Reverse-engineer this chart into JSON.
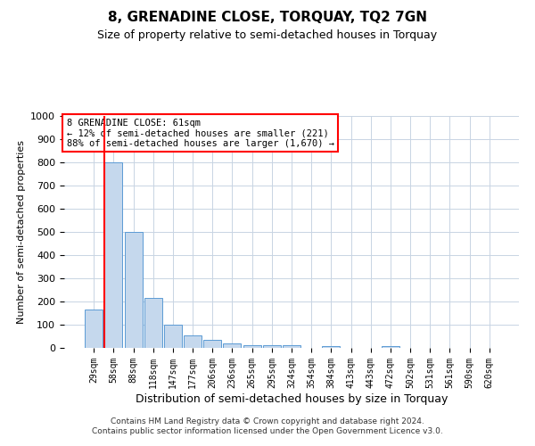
{
  "title": "8, GRENADINE CLOSE, TORQUAY, TQ2 7GN",
  "subtitle": "Size of property relative to semi-detached houses in Torquay",
  "xlabel": "Distribution of semi-detached houses by size in Torquay",
  "ylabel": "Number of semi-detached properties",
  "categories": [
    "29sqm",
    "58sqm",
    "88sqm",
    "118sqm",
    "147sqm",
    "177sqm",
    "206sqm",
    "236sqm",
    "265sqm",
    "295sqm",
    "324sqm",
    "354sqm",
    "384sqm",
    "413sqm",
    "443sqm",
    "472sqm",
    "502sqm",
    "531sqm",
    "561sqm",
    "590sqm",
    "620sqm"
  ],
  "values": [
    165,
    800,
    500,
    215,
    100,
    53,
    35,
    20,
    13,
    10,
    10,
    0,
    8,
    0,
    0,
    8,
    0,
    0,
    0,
    0,
    0
  ],
  "bar_color": "#c5d8ed",
  "bar_edge_color": "#5b9bd5",
  "red_line_x": 0.55,
  "ylim": [
    0,
    1000
  ],
  "yticks": [
    0,
    100,
    200,
    300,
    400,
    500,
    600,
    700,
    800,
    900,
    1000
  ],
  "annotation_title": "8 GRENADINE CLOSE: 61sqm",
  "annotation_line1": "← 12% of semi-detached houses are smaller (221)",
  "annotation_line2": "88% of semi-detached houses are larger (1,670) →",
  "annotation_box_color": "#ffffff",
  "annotation_box_edge_color": "#ff0000",
  "footer1": "Contains HM Land Registry data © Crown copyright and database right 2024.",
  "footer2": "Contains public sector information licensed under the Open Government Licence v3.0.",
  "bg_color": "#ffffff",
  "grid_color": "#c8d4e3",
  "title_fontsize": 11,
  "subtitle_fontsize": 9,
  "ylabel_fontsize": 8,
  "xlabel_fontsize": 9,
  "footer_fontsize": 6.5
}
